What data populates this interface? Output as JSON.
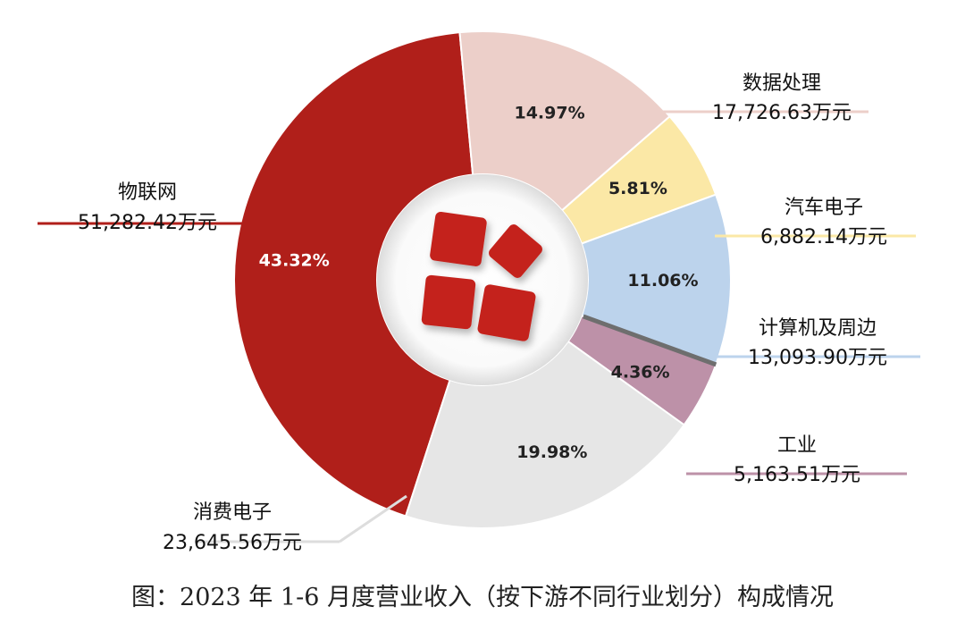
{
  "caption": "图：2023 年 1-6 月度营业收入（按下游不同行业划分）构成情况",
  "chart_data": {
    "type": "pie",
    "donut": true,
    "unit": "万元",
    "slices": [
      {
        "name": "物联网",
        "value": 51282.42,
        "value_label": "51,282.42万元",
        "percent": "43.32%",
        "color": "#b01f1a"
      },
      {
        "name": "数据处理",
        "value": 17726.63,
        "value_label": "17,726.63万元",
        "percent": "14.97%",
        "color": "#eccfc9"
      },
      {
        "name": "汽车电子",
        "value": 6882.14,
        "value_label": "6,882.14万元",
        "percent": "5.81%",
        "color": "#fbe8a6"
      },
      {
        "name": "计算机及周边",
        "value": 13093.9,
        "value_label": "13,093.90万元",
        "percent": "11.06%",
        "color": "#bcd3ec"
      },
      {
        "name": "工业",
        "value": 5163.51,
        "value_label": "5,163.51万元",
        "percent": "4.36%",
        "color": "#bd91a8"
      },
      {
        "name": "消费电子",
        "value": 23645.56,
        "value_label": "23,645.56万元",
        "percent": "19.98%",
        "color": "#e6e6e6"
      }
    ],
    "center_icon": "red-tiles-logo"
  }
}
